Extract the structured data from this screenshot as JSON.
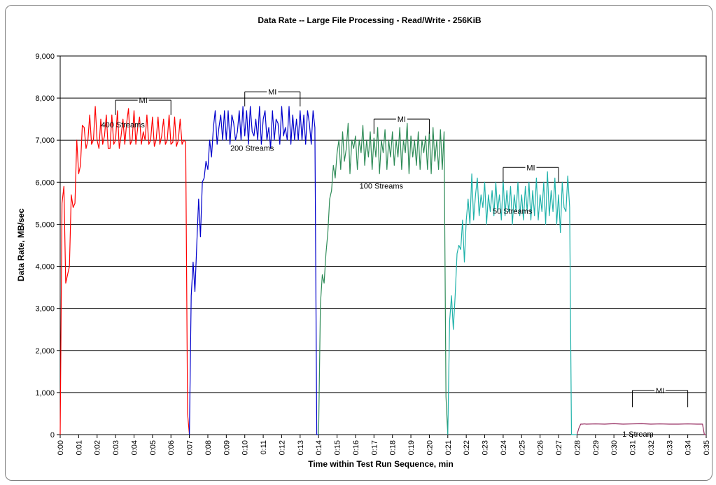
{
  "chart_data": {
    "type": "line",
    "title": "Data Rate -- Large File Processing - Read/Write - 256KiB",
    "xlabel": "Time within Test Run Sequence, min",
    "ylabel": "Data Rate, MB/sec",
    "ylim": [
      0,
      9000
    ],
    "yticks": [
      0,
      1000,
      2000,
      3000,
      4000,
      5000,
      6000,
      7000,
      8000,
      9000
    ],
    "ytick_labels": [
      "0",
      "1,000",
      "2,000",
      "3,000",
      "4,000",
      "5,000",
      "6,000",
      "7,000",
      "8,000",
      "9,000"
    ],
    "xlim": [
      0,
      35
    ],
    "xtick_labels": [
      "0:00",
      "0:01",
      "0:02",
      "0:03",
      "0:04",
      "0:05",
      "0:06",
      "0:07",
      "0:08",
      "0:09",
      "0:10",
      "0:11",
      "0:12",
      "0:13",
      "0:14",
      "0:15",
      "0:16",
      "0:17",
      "0:18",
      "0:19",
      "0:20",
      "0:21",
      "0:22",
      "0:23",
      "0:24",
      "0:25",
      "0:26",
      "0:27",
      "0:28",
      "0:29",
      "0:30",
      "0:31",
      "0:32",
      "0:33",
      "0:34",
      "0:35"
    ],
    "grid": "horizontal",
    "series": [
      {
        "label": "400 Streams",
        "color": "#ff0000",
        "x": [
          0.0,
          0.1,
          0.2,
          0.3,
          0.4,
          0.5,
          0.6,
          0.7,
          0.8,
          0.9,
          1.0,
          1.1,
          1.2,
          1.3,
          1.4,
          1.5,
          1.6,
          1.7,
          1.8,
          1.9,
          2.0,
          2.1,
          2.2,
          2.3,
          2.4,
          2.5,
          2.6,
          2.7,
          2.8,
          2.9,
          3.0,
          3.1,
          3.2,
          3.3,
          3.4,
          3.5,
          3.6,
          3.7,
          3.8,
          3.9,
          4.0,
          4.1,
          4.2,
          4.3,
          4.4,
          4.5,
          4.6,
          4.7,
          4.8,
          4.9,
          5.0,
          5.1,
          5.2,
          5.3,
          5.4,
          5.5,
          5.6,
          5.7,
          5.8,
          5.9,
          6.0,
          6.1,
          6.2,
          6.3,
          6.4,
          6.5,
          6.6,
          6.7,
          6.8,
          6.9,
          7.0
        ],
        "y": [
          0,
          5500,
          5900,
          3600,
          3800,
          4000,
          5700,
          5400,
          5500,
          7000,
          6200,
          6400,
          7350,
          7300,
          6800,
          7000,
          7600,
          6900,
          7000,
          7800,
          7000,
          6800,
          7500,
          6900,
          7100,
          7600,
          6800,
          6800,
          7600,
          6900,
          7000,
          7700,
          6800,
          7100,
          7500,
          6900,
          7400,
          7750,
          6900,
          7000,
          7700,
          6900,
          7300,
          7550,
          6900,
          7200,
          7000,
          7600,
          6900,
          7000,
          7550,
          6850,
          7000,
          7550,
          6900,
          7100,
          7500,
          6900,
          7000,
          7600,
          6900,
          6950,
          7550,
          6850,
          7000,
          7500,
          6900,
          7000,
          6950,
          500,
          0
        ]
      },
      {
        "label": "200 Streams",
        "color": "#0000cc",
        "x": [
          7.0,
          7.1,
          7.2,
          7.3,
          7.4,
          7.5,
          7.6,
          7.7,
          7.8,
          7.9,
          8.0,
          8.1,
          8.2,
          8.3,
          8.4,
          8.5,
          8.6,
          8.7,
          8.8,
          8.9,
          9.0,
          9.1,
          9.2,
          9.3,
          9.4,
          9.5,
          9.6,
          9.7,
          9.8,
          9.9,
          10.0,
          10.1,
          10.2,
          10.3,
          10.4,
          10.5,
          10.6,
          10.7,
          10.8,
          10.9,
          11.0,
          11.1,
          11.2,
          11.3,
          11.4,
          11.5,
          11.6,
          11.7,
          11.8,
          11.9,
          12.0,
          12.1,
          12.2,
          12.3,
          12.4,
          12.5,
          12.6,
          12.7,
          12.8,
          12.9,
          13.0,
          13.1,
          13.2,
          13.3,
          13.4,
          13.5,
          13.6,
          13.7,
          13.8,
          13.9,
          14.0
        ],
        "y": [
          0,
          3300,
          4100,
          3400,
          4500,
          5600,
          4700,
          6000,
          6100,
          6500,
          6300,
          7000,
          6600,
          7300,
          7700,
          6900,
          7300,
          7600,
          7000,
          7700,
          7000,
          7700,
          6900,
          7600,
          7400,
          7000,
          7200,
          7700,
          7000,
          7800,
          7100,
          7700,
          6900,
          7800,
          7200,
          7100,
          7500,
          7000,
          7800,
          6900,
          7500,
          7700,
          7000,
          7300,
          6800,
          7700,
          7000,
          7500,
          7400,
          6900,
          7800,
          7100,
          7300,
          7000,
          7800,
          6900,
          7600,
          7000,
          7500,
          7000,
          7700,
          7000,
          7600,
          6900,
          7700,
          7400,
          6900,
          7700,
          7300,
          0,
          0
        ]
      },
      {
        "label": "100 Streams",
        "color": "#2e8b57",
        "x": [
          14.0,
          14.1,
          14.2,
          14.3,
          14.4,
          14.5,
          14.6,
          14.7,
          14.8,
          14.9,
          15.0,
          15.1,
          15.2,
          15.3,
          15.4,
          15.5,
          15.6,
          15.7,
          15.8,
          15.9,
          16.0,
          16.1,
          16.2,
          16.3,
          16.4,
          16.5,
          16.6,
          16.7,
          16.8,
          16.9,
          17.0,
          17.1,
          17.2,
          17.3,
          17.4,
          17.5,
          17.6,
          17.7,
          17.8,
          17.9,
          18.0,
          18.1,
          18.2,
          18.3,
          18.4,
          18.5,
          18.6,
          18.7,
          18.8,
          18.9,
          19.0,
          19.1,
          19.2,
          19.3,
          19.4,
          19.5,
          19.6,
          19.7,
          19.8,
          19.9,
          20.0,
          20.1,
          20.2,
          20.3,
          20.4,
          20.5,
          20.6,
          20.7,
          20.8,
          20.9,
          21.0
        ],
        "y": [
          0,
          3100,
          3800,
          3600,
          4300,
          4800,
          5600,
          5800,
          6400,
          6100,
          6700,
          7000,
          6300,
          7200,
          6500,
          6800,
          7400,
          6200,
          7000,
          6800,
          7100,
          6300,
          7000,
          6700,
          7350,
          6400,
          7000,
          6600,
          7200,
          6300,
          7050,
          6600,
          7300,
          6200,
          7000,
          6700,
          7250,
          6300,
          7000,
          6600,
          7200,
          6400,
          7000,
          6600,
          7300,
          6300,
          7000,
          6700,
          7400,
          6200,
          7100,
          6600,
          7000,
          6400,
          7200,
          6300,
          7000,
          6700,
          7100,
          6300,
          7200,
          6200,
          7300,
          6500,
          7000,
          6300,
          7250,
          6300,
          7200,
          900,
          0
        ]
      },
      {
        "label": "50 Streams",
        "color": "#20b2aa",
        "x": [
          21.0,
          21.1,
          21.2,
          21.3,
          21.4,
          21.5,
          21.6,
          21.7,
          21.8,
          21.9,
          22.0,
          22.1,
          22.2,
          22.3,
          22.4,
          22.5,
          22.6,
          22.7,
          22.8,
          22.9,
          23.0,
          23.1,
          23.2,
          23.3,
          23.4,
          23.5,
          23.6,
          23.7,
          23.8,
          23.9,
          24.0,
          24.1,
          24.2,
          24.3,
          24.4,
          24.5,
          24.6,
          24.7,
          24.8,
          24.9,
          25.0,
          25.1,
          25.2,
          25.3,
          25.4,
          25.5,
          25.6,
          25.7,
          25.8,
          25.9,
          26.0,
          26.1,
          26.2,
          26.3,
          26.4,
          26.5,
          26.6,
          26.7,
          26.8,
          26.9,
          27.0,
          27.1,
          27.2,
          27.3,
          27.4,
          27.5,
          27.6,
          27.7,
          27.8,
          27.9,
          28.0
        ],
        "y": [
          0,
          2700,
          3300,
          2500,
          3300,
          4300,
          4500,
          4400,
          5100,
          4100,
          5100,
          5600,
          5000,
          6200,
          5100,
          5700,
          6100,
          5200,
          5700,
          5400,
          6000,
          5000,
          5700,
          5300,
          5800,
          5200,
          6000,
          5300,
          5700,
          5100,
          6050,
          5200,
          5800,
          5300,
          5900,
          5000,
          5700,
          5300,
          6000,
          5200,
          5700,
          5100,
          5900,
          5300,
          6000,
          5100,
          5800,
          5200,
          6100,
          5100,
          5700,
          5300,
          6000,
          5000,
          6250,
          5200,
          5800,
          5300,
          6100,
          5000,
          5700,
          4800,
          6000,
          5400,
          5300,
          6150,
          5400,
          0,
          0,
          0,
          0
        ]
      },
      {
        "label": "1 Stream",
        "color": "#993366",
        "x": [
          28.0,
          28.1,
          28.2,
          28.3,
          28.4,
          28.5,
          29.0,
          29.5,
          30.0,
          30.5,
          31.0,
          31.5,
          32.0,
          32.5,
          33.0,
          33.5,
          34.0,
          34.5,
          34.8,
          34.9,
          35.0
        ],
        "y": [
          0,
          150,
          250,
          250,
          255,
          250,
          255,
          250,
          260,
          250,
          255,
          260,
          250,
          255,
          250,
          250,
          255,
          250,
          250,
          0,
          0
        ]
      }
    ],
    "annotations": [
      {
        "text": "400 Streams",
        "x": 3.4,
        "y": 7300
      },
      {
        "text": "200 Streams",
        "x": 10.4,
        "y": 6750
      },
      {
        "text": "100 Streams",
        "x": 17.4,
        "y": 5850
      },
      {
        "text": "50 Streams",
        "x": 24.5,
        "y": 5250
      },
      {
        "text": "1 Stream",
        "x": 31.3,
        "y": -50
      }
    ],
    "mi_brackets": [
      {
        "text": "MI",
        "x_start": 3.0,
        "x_end": 6.0,
        "y_top": 7950,
        "y_bottom": 7600
      },
      {
        "text": "MI",
        "x_start": 10.0,
        "x_end": 13.0,
        "y_top": 8150,
        "y_bottom": 7800
      },
      {
        "text": "MI",
        "x_start": 17.0,
        "x_end": 20.0,
        "y_top": 7500,
        "y_bottom": 7150
      },
      {
        "text": "MI",
        "x_start": 24.0,
        "x_end": 27.0,
        "y_top": 6350,
        "y_bottom": 6000
      },
      {
        "text": "MI",
        "x_start": 31.0,
        "x_end": 34.0,
        "y_top": 1050,
        "y_bottom": 650
      }
    ]
  }
}
